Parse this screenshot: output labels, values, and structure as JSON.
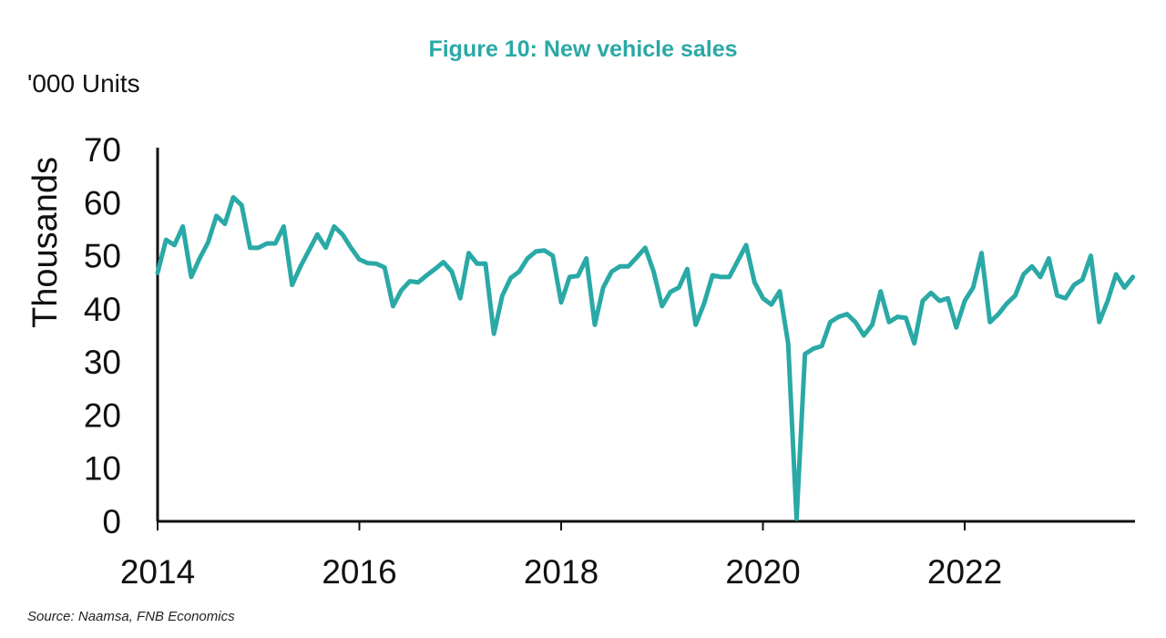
{
  "chart_data": {
    "type": "line",
    "title": "Figure 10: New vehicle sales",
    "units_label": "'000 Units",
    "ylabel": "Thousands",
    "xlabel": "",
    "source": "Source: Naamsa, FNB Economics",
    "ylim": [
      0,
      70
    ],
    "xlim": [
      2014,
      2023.67
    ],
    "y_ticks": [
      "0",
      "10",
      "20",
      "30",
      "40",
      "50",
      "60",
      "70"
    ],
    "x_ticks": [
      "2014",
      "2016",
      "2018",
      "2020",
      "2022"
    ],
    "grid": false,
    "line_color": "#2aa9a6",
    "series": [
      {
        "x": [
          "2014-01",
          "2014-02",
          "2014-03",
          "2014-04",
          "2014-05",
          "2014-06",
          "2014-07",
          "2014-08",
          "2014-09",
          "2014-10",
          "2014-11",
          "2014-12",
          "2015-01",
          "2015-02",
          "2015-03",
          "2015-04",
          "2015-05",
          "2015-06",
          "2015-07",
          "2015-08",
          "2015-09",
          "2015-10",
          "2015-11",
          "2015-12",
          "2016-01",
          "2016-02",
          "2016-03",
          "2016-04",
          "2016-05",
          "2016-06",
          "2016-07",
          "2016-08",
          "2016-09",
          "2016-10",
          "2016-11",
          "2016-12",
          "2017-01",
          "2017-02",
          "2017-03",
          "2017-04",
          "2017-05",
          "2017-06",
          "2017-07",
          "2017-08",
          "2017-09",
          "2017-10",
          "2017-11",
          "2017-12",
          "2018-01",
          "2018-02",
          "2018-03",
          "2018-04",
          "2018-05",
          "2018-06",
          "2018-07",
          "2018-08",
          "2018-09",
          "2018-10",
          "2018-11",
          "2018-12",
          "2019-01",
          "2019-02",
          "2019-03",
          "2019-04",
          "2019-05",
          "2019-06",
          "2019-07",
          "2019-08",
          "2019-09",
          "2019-10",
          "2019-11",
          "2019-12",
          "2020-01",
          "2020-02",
          "2020-03",
          "2020-04",
          "2020-05",
          "2020-06",
          "2020-07",
          "2020-08",
          "2020-09",
          "2020-10",
          "2020-11",
          "2020-12",
          "2021-01",
          "2021-02",
          "2021-03",
          "2021-04",
          "2021-05",
          "2021-06",
          "2021-07",
          "2021-08",
          "2021-09",
          "2021-10",
          "2021-11",
          "2021-12",
          "2022-01",
          "2022-02",
          "2022-03",
          "2022-04",
          "2022-05",
          "2022-06",
          "2022-07",
          "2022-08",
          "2022-09",
          "2022-10",
          "2022-11",
          "2022-12",
          "2023-01",
          "2023-02",
          "2023-03",
          "2023-04",
          "2023-05",
          "2023-06",
          "2023-07",
          "2023-08",
          "2023-09"
        ],
        "values": [
          46.8,
          53,
          52,
          55.5,
          46,
          49.5,
          52.5,
          57.5,
          56,
          61,
          59.5,
          51.5,
          51.5,
          52.3,
          52.3,
          55.5,
          44.5,
          48,
          51,
          54,
          51.5,
          55.5,
          54,
          51.5,
          49.3,
          48.6,
          48.5,
          47.8,
          40.5,
          43.5,
          45.2,
          45,
          46.3,
          47.5,
          48.8,
          47,
          42,
          50.5,
          48.5,
          48.5,
          35.3,
          42.5,
          45.8,
          47,
          49.5,
          50.8,
          51,
          50,
          41.2,
          46,
          46.2,
          49.5,
          37,
          44,
          47,
          48,
          48,
          49.7,
          51.5,
          47,
          40.5,
          43.2,
          44,
          47.5,
          37,
          41,
          46.3,
          46,
          46,
          49,
          52,
          45,
          42,
          40.8,
          43.3,
          33.5,
          0.5,
          31.5,
          32.5,
          33,
          37.5,
          38.5,
          39,
          37.5,
          35,
          37,
          43.3,
          37.5,
          38.5,
          38.3,
          33.5,
          41.5,
          43,
          41.5,
          42,
          36.5,
          41.5,
          44,
          50.5,
          37.5,
          39,
          41,
          42.5,
          46.5,
          48,
          46,
          49.5,
          42.5,
          42,
          44.5,
          45.5,
          50,
          37.5,
          41.5,
          46.5,
          44,
          46
        ]
      }
    ]
  }
}
